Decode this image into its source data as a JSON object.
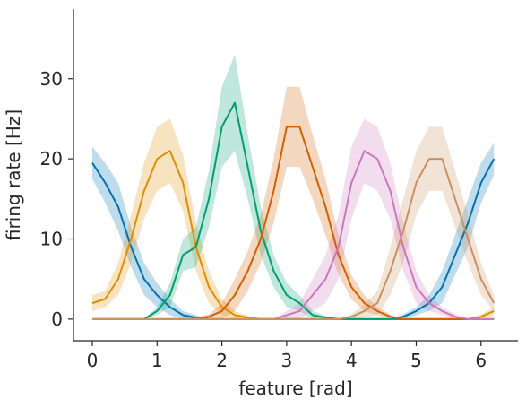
{
  "chart_data": {
    "type": "line",
    "x_label": "feature [rad]",
    "y_label": "firing rate [Hz]",
    "x": [
      0,
      0.2,
      0.4,
      0.6,
      0.8,
      1.0,
      1.2,
      1.4,
      1.6,
      1.8,
      2.0,
      2.2,
      2.4,
      2.6,
      2.8,
      3.0,
      3.2,
      3.4,
      3.6,
      3.8,
      4.0,
      4.2,
      4.4,
      4.6,
      4.8,
      5.0,
      5.2,
      5.4,
      5.6,
      5.8,
      6.0,
      6.2
    ],
    "series": [
      {
        "color": "#0173b2",
        "values": [
          19.5,
          17,
          14,
          9,
          5,
          3,
          1.5,
          0.5,
          0.2,
          0,
          0,
          0,
          0,
          0,
          0,
          0,
          0,
          0,
          0,
          0,
          0,
          0,
          0,
          0,
          0.3,
          1,
          2,
          4,
          8,
          12,
          17,
          20
        ],
        "ci": [
          2,
          2.5,
          3,
          2.5,
          2,
          1.5,
          1,
          0.5,
          0.3,
          0,
          0,
          0,
          0,
          0,
          0,
          0,
          0,
          0,
          0,
          0,
          0,
          0,
          0,
          0,
          0.3,
          0.5,
          1,
          2,
          2.5,
          3,
          2.5,
          2
        ]
      },
      {
        "color": "#de8f05",
        "values": [
          2,
          2.5,
          5,
          10,
          16,
          20,
          21,
          17,
          9,
          4,
          1.5,
          0.5,
          0.2,
          0,
          0,
          0,
          0,
          0,
          0,
          0,
          0,
          0,
          0,
          0,
          0,
          0,
          0,
          0,
          0,
          0,
          0.3,
          1
        ],
        "ci": [
          1,
          1,
          2,
          3,
          3.5,
          4,
          4,
          3.5,
          3,
          2,
          1,
          0.5,
          0.2,
          0,
          0,
          0,
          0,
          0,
          0,
          0,
          0,
          0,
          0,
          0,
          0,
          0,
          0,
          0,
          0,
          0,
          0.3,
          0.5
        ]
      },
      {
        "color": "#029e73",
        "values": [
          0,
          0,
          0,
          0,
          0,
          1,
          3,
          8,
          9,
          15,
          24,
          27,
          19,
          11,
          6,
          3,
          2,
          0.5,
          0.2,
          0,
          0,
          0,
          0,
          0,
          0,
          0,
          0,
          0,
          0,
          0,
          0,
          0
        ],
        "ci": [
          0,
          0,
          0,
          0,
          0,
          0.5,
          1.5,
          2,
          2.5,
          3.5,
          5,
          6,
          4,
          3,
          2,
          1.5,
          1,
          0.5,
          0.2,
          0,
          0,
          0,
          0,
          0,
          0,
          0,
          0,
          0,
          0,
          0,
          0,
          0
        ]
      },
      {
        "color": "#d55e00",
        "values": [
          0,
          0,
          0,
          0,
          0,
          0,
          0,
          0,
          0.1,
          0.3,
          1,
          3,
          6,
          10,
          16,
          24,
          24,
          19,
          14,
          8,
          4,
          2,
          1,
          0.3,
          0,
          0,
          0,
          0,
          0,
          0,
          0,
          0
        ],
        "ci": [
          0,
          0,
          0,
          0,
          0,
          0,
          0,
          0,
          0.1,
          0.3,
          1,
          2,
          2.5,
          3,
          4,
          5,
          5,
          4,
          3.5,
          2.5,
          1.5,
          1,
          0.5,
          0.3,
          0,
          0,
          0,
          0,
          0,
          0,
          0,
          0
        ]
      },
      {
        "color": "#cc78bc",
        "values": [
          0,
          0,
          0,
          0,
          0,
          0,
          0,
          0,
          0,
          0,
          0,
          0,
          0,
          0,
          0,
          0.5,
          1,
          3,
          5,
          9,
          17,
          21,
          20,
          16,
          9,
          4,
          2,
          1,
          0.3,
          0,
          0,
          0
        ],
        "ci": [
          0,
          0,
          0,
          0,
          0,
          0,
          0,
          0,
          0,
          0,
          0,
          0,
          0,
          0,
          0,
          0.5,
          1,
          2,
          3,
          4,
          4.5,
          4,
          4,
          3.5,
          3,
          2,
          1,
          0.5,
          0.3,
          0,
          0,
          0
        ]
      },
      {
        "color": "#ca9161",
        "values": [
          0,
          0,
          0,
          0,
          0,
          0,
          0,
          0,
          0,
          0,
          0,
          0,
          0,
          0,
          0,
          0,
          0,
          0,
          0,
          0,
          0.3,
          1,
          2,
          6,
          11,
          17,
          20,
          20,
          15,
          10,
          5,
          2
        ],
        "ci": [
          0,
          0,
          0,
          0,
          0,
          0,
          0,
          0,
          0,
          0,
          0,
          0,
          0,
          0,
          0,
          0,
          0,
          0,
          0,
          0,
          0.3,
          0.8,
          1.5,
          3,
          4,
          4,
          4,
          4,
          3.5,
          3,
          2,
          1
        ]
      }
    ],
    "xlim": [
      -0.29,
      6.57
    ],
    "ylim": [
      -2.7,
      38.7
    ],
    "xticks": [
      0,
      1,
      2,
      3,
      4,
      5,
      6
    ],
    "yticks": [
      0,
      10,
      20,
      30
    ],
    "grid": false
  }
}
